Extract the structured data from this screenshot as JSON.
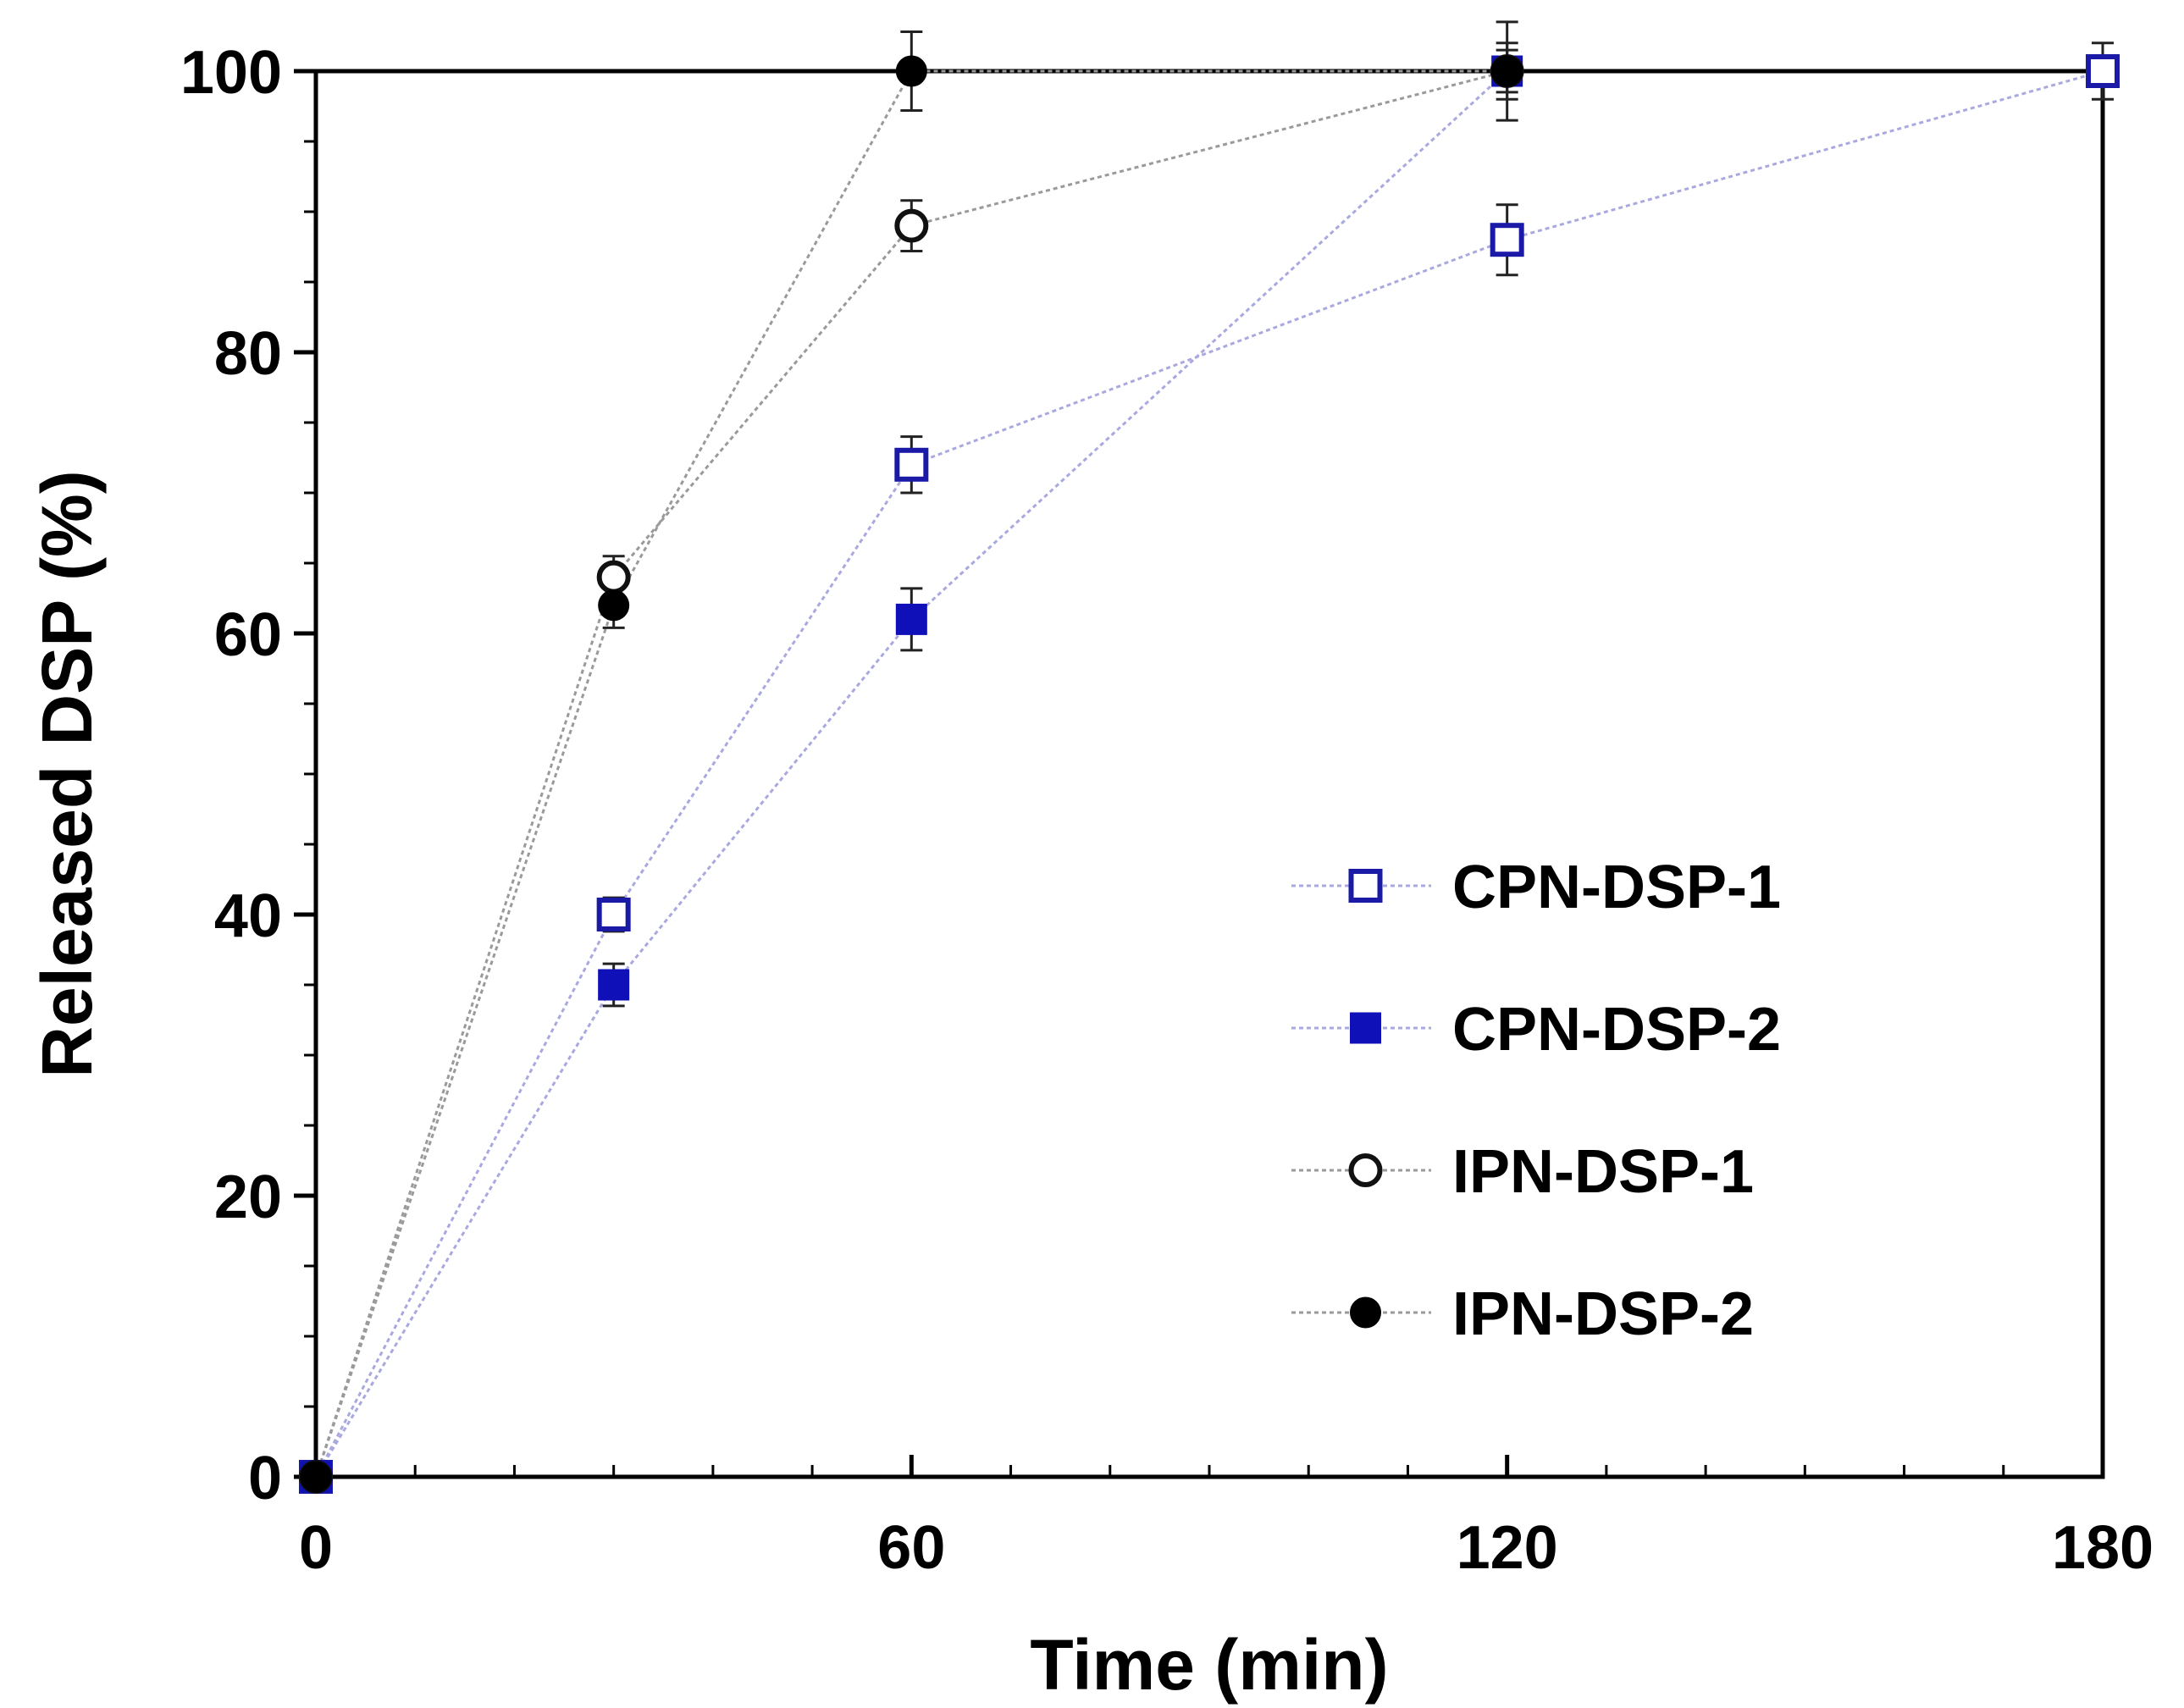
{
  "chart_data": {
    "type": "line",
    "xlabel": "Time (min)",
    "ylabel": "Released DSP (%)",
    "xlim": [
      0,
      180
    ],
    "ylim": [
      0,
      100
    ],
    "x_ticks": [
      0,
      60,
      120,
      180
    ],
    "y_ticks": [
      0,
      20,
      40,
      60,
      80,
      100
    ],
    "legend_position": "lower-right",
    "series": [
      {
        "name": "CPN-DSP-1",
        "marker": "open-square",
        "color": "#1a1aa6",
        "line_color": "#a9a9e0",
        "x": [
          0,
          30,
          60,
          120,
          180
        ],
        "y": [
          0,
          40,
          72,
          88,
          100
        ],
        "err": [
          0,
          1.2,
          2.0,
          2.5,
          2.0
        ]
      },
      {
        "name": "CPN-DSP-2",
        "marker": "filled-square",
        "color": "#1010b8",
        "line_color": "#a9a9e0",
        "x": [
          0,
          30,
          60,
          120
        ],
        "y": [
          0,
          35,
          61,
          100
        ],
        "err": [
          0,
          1.5,
          2.2,
          2.0
        ]
      },
      {
        "name": "IPN-DSP-1",
        "marker": "open-circle",
        "color": "#111111",
        "line_color": "#9a9a9a",
        "x": [
          0,
          30,
          60,
          120
        ],
        "y": [
          0,
          64,
          89,
          100
        ],
        "err": [
          0,
          1.5,
          1.8,
          3.5
        ]
      },
      {
        "name": "IPN-DSP-2",
        "marker": "filled-circle",
        "color": "#000000",
        "line_color": "#9a9a9a",
        "x": [
          0,
          30,
          60,
          120
        ],
        "y": [
          0,
          62,
          100,
          100
        ],
        "err": [
          0,
          1.6,
          2.8,
          1.5
        ]
      }
    ]
  }
}
